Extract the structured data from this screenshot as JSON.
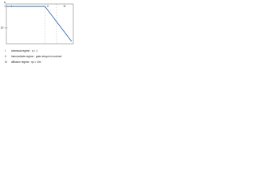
{
  "chart_data": {
    "type": "line",
    "y_label": "η",
    "x": [
      0.01,
      2,
      80
    ],
    "series": [
      {
        "name": "η",
        "color": "#1a5fa8",
        "values": [
          1,
          1,
          0.023
        ]
      }
    ],
    "xlim": [
      0.01,
      100
    ],
    "ylim": [
      0.018,
      1.3
    ],
    "log_x": true,
    "log_y": true,
    "yticks": [
      1,
      {
        "value": 0.1,
        "label": "10⁻¹"
      }
    ],
    "regions": [
      {
        "label": "I",
        "x": 0.02
      },
      {
        "label": "II",
        "x": 3
      },
      {
        "label": "III",
        "x": 30
      }
    ],
    "boundaries": [
      2,
      10
    ],
    "notes": [
      {
        "key": "I",
        "text": "chemical regime : η = 1"
      },
      {
        "key": "II",
        "text": "intermediate regime : grain shape is involved"
      },
      {
        "key": "III",
        "text": "diffusion regime : ηs = 1/m"
      }
    ]
  }
}
